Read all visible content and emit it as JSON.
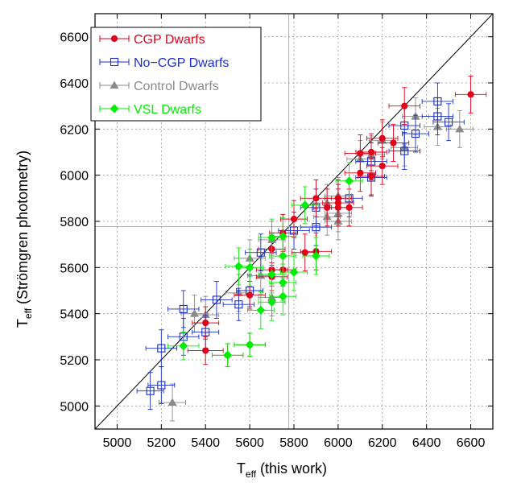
{
  "chart_data": {
    "type": "scatter",
    "xlabel": {
      "main": "T",
      "sub": "eff",
      "rest": " (this work)"
    },
    "ylabel": {
      "main": "T",
      "sub": "eff",
      "rest": " (Strömgren photometry)"
    },
    "xlim": [
      4900,
      6700
    ],
    "ylim": [
      4900,
      6700
    ],
    "xticks": [
      5000,
      5200,
      5400,
      5600,
      5800,
      6000,
      6200,
      6400,
      6600
    ],
    "yticks": [
      5000,
      5200,
      5400,
      5600,
      5800,
      6000,
      6200,
      6400,
      6600
    ],
    "grid": true,
    "legend_position": "top-left",
    "reference_lines": {
      "one_to_one": true,
      "solar_teff": 5777
    },
    "series": [
      {
        "name": "CGP Dwarfs",
        "color": "#e0001a",
        "marker": "filled-circle",
        "points": [
          [
            5400,
            5240,
            80,
            60
          ],
          [
            5400,
            5360,
            60,
            70
          ],
          [
            5500,
            5220,
            70,
            50
          ],
          [
            5600,
            5265,
            70,
            50
          ],
          [
            5600,
            5480,
            70,
            60
          ],
          [
            5700,
            5560,
            70,
            60
          ],
          [
            5700,
            5590,
            70,
            70
          ],
          [
            5700,
            5680,
            60,
            70
          ],
          [
            5750,
            5590,
            60,
            70
          ],
          [
            5750,
            5750,
            60,
            80
          ],
          [
            5800,
            5810,
            60,
            80
          ],
          [
            5850,
            5665,
            60,
            80
          ],
          [
            5900,
            5670,
            70,
            80
          ],
          [
            5900,
            5900,
            70,
            80
          ],
          [
            5950,
            5860,
            60,
            80
          ],
          [
            6000,
            5860,
            60,
            80
          ],
          [
            6000,
            5880,
            70,
            80
          ],
          [
            6000,
            5900,
            60,
            80
          ],
          [
            6050,
            5860,
            60,
            80
          ],
          [
            6100,
            6010,
            70,
            80
          ],
          [
            6100,
            6095,
            70,
            80
          ],
          [
            6150,
            5995,
            60,
            80
          ],
          [
            6150,
            6100,
            70,
            80
          ],
          [
            6200,
            6040,
            70,
            80
          ],
          [
            6200,
            6160,
            70,
            80
          ],
          [
            6250,
            6140,
            70,
            80
          ],
          [
            6300,
            6300,
            70,
            80
          ],
          [
            6600,
            6350,
            70,
            80
          ]
        ]
      },
      {
        "name": "No−CGP Dwarfs",
        "color": "#1a2ecc",
        "marker": "open-square",
        "points": [
          [
            5150,
            5065,
            60,
            80
          ],
          [
            5200,
            5090,
            60,
            80
          ],
          [
            5200,
            5250,
            70,
            80
          ],
          [
            5300,
            5300,
            70,
            80
          ],
          [
            5300,
            5420,
            70,
            80
          ],
          [
            5400,
            5320,
            60,
            70
          ],
          [
            5450,
            5460,
            70,
            80
          ],
          [
            5550,
            5440,
            70,
            70
          ],
          [
            5600,
            5500,
            60,
            70
          ],
          [
            5650,
            5665,
            70,
            80
          ],
          [
            5800,
            5760,
            70,
            80
          ],
          [
            5900,
            5775,
            70,
            80
          ],
          [
            5900,
            5860,
            70,
            80
          ],
          [
            6050,
            5900,
            60,
            80
          ],
          [
            6150,
            5990,
            70,
            80
          ],
          [
            6150,
            6060,
            70,
            80
          ],
          [
            6300,
            6105,
            70,
            80
          ],
          [
            6300,
            6215,
            70,
            80
          ],
          [
            6350,
            6180,
            60,
            80
          ],
          [
            6450,
            6255,
            70,
            80
          ],
          [
            6450,
            6320,
            70,
            80
          ],
          [
            6500,
            6230,
            70,
            80
          ]
        ]
      },
      {
        "name": "Control Dwarfs",
        "color": "#8a8a8a",
        "marker": "filled-triangle",
        "points": [
          [
            5250,
            5015,
            60,
            80
          ],
          [
            5350,
            5400,
            60,
            80
          ],
          [
            5400,
            5395,
            60,
            80
          ],
          [
            5550,
            5490,
            60,
            80
          ],
          [
            5600,
            5640,
            70,
            80
          ],
          [
            5650,
            5565,
            60,
            80
          ],
          [
            5700,
            5470,
            60,
            80
          ],
          [
            5700,
            5720,
            60,
            80
          ],
          [
            5950,
            5820,
            60,
            80
          ],
          [
            5950,
            5880,
            60,
            80
          ],
          [
            6000,
            5800,
            60,
            80
          ],
          [
            6000,
            5835,
            60,
            80
          ],
          [
            6000,
            5910,
            60,
            80
          ],
          [
            6100,
            6070,
            60,
            80
          ],
          [
            6150,
            6090,
            60,
            80
          ],
          [
            6200,
            6150,
            60,
            80
          ],
          [
            6300,
            6120,
            60,
            80
          ],
          [
            6350,
            6255,
            60,
            80
          ],
          [
            6450,
            6210,
            60,
            80
          ],
          [
            6550,
            6200,
            60,
            80
          ]
        ]
      },
      {
        "name": "VSL Dwarfs",
        "color": "#00ee00",
        "marker": "filled-diamond",
        "points": [
          [
            5300,
            5260,
            70,
            60
          ],
          [
            5500,
            5220,
            70,
            50
          ],
          [
            5550,
            5605,
            60,
            80
          ],
          [
            5600,
            5265,
            70,
            50
          ],
          [
            5600,
            5600,
            60,
            80
          ],
          [
            5650,
            5415,
            60,
            80
          ],
          [
            5700,
            5450,
            60,
            80
          ],
          [
            5700,
            5570,
            60,
            80
          ],
          [
            5700,
            5730,
            60,
            80
          ],
          [
            5750,
            5475,
            60,
            80
          ],
          [
            5750,
            5535,
            60,
            80
          ],
          [
            5750,
            5650,
            60,
            80
          ],
          [
            5750,
            5735,
            60,
            80
          ],
          [
            5800,
            5580,
            60,
            80
          ],
          [
            5850,
            5870,
            60,
            80
          ],
          [
            5900,
            5650,
            60,
            80
          ],
          [
            6050,
            5975,
            60,
            80
          ]
        ]
      }
    ]
  }
}
